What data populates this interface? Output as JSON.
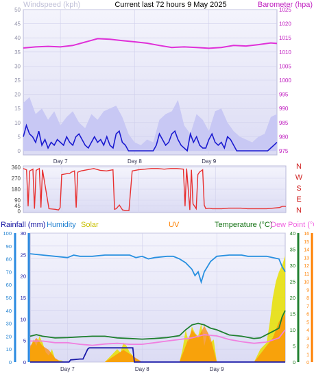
{
  "chart_data": [
    {
      "type": "line",
      "title": "Current last 72 hours 9 May 2025",
      "ylabel_left": "Windspeed (kph)",
      "ylabel_right": "Barometer (hpa)",
      "ylim_left": [
        0,
        50
      ],
      "ylim_right": [
        975,
        1025
      ],
      "yticks_left": [
        "0",
        "5",
        "10",
        "15",
        "20",
        "25",
        "30",
        "35",
        "40",
        "45",
        "50"
      ],
      "yticks_right": [
        "975",
        "980",
        "985",
        "990",
        "995",
        "1000",
        "1005",
        "1010",
        "1015",
        "1020",
        "1025"
      ],
      "x_labels": [
        "Day 7",
        "Day 8",
        "Day 9"
      ],
      "x_label_hours": [
        12,
        36,
        60
      ],
      "x_range_hours": [
        0,
        82
      ],
      "colors": {
        "wind_gust": "#c8c8f4",
        "wind_avg": "#1a1ad0",
        "barometer": "#e030d8",
        "label_left": "#c0c0d8",
        "label_right": "#c020c0"
      },
      "series": [
        {
          "name": "Barometer (hpa)",
          "hours": [
            0,
            4,
            8,
            12,
            16,
            20,
            24,
            28,
            32,
            36,
            40,
            44,
            48,
            52,
            56,
            60,
            64,
            68,
            72,
            76,
            80,
            82
          ],
          "values": [
            1011.4,
            1011.8,
            1012,
            1011.8,
            1012.3,
            1013.5,
            1014.7,
            1014.5,
            1014,
            1013.6,
            1013.1,
            1012.3,
            1011.6,
            1011.8,
            1011.6,
            1011.3,
            1011.6,
            1012.3,
            1012.1,
            1012.6,
            1013.2,
            1013.0
          ]
        },
        {
          "name": "Windspeed (kph)",
          "hours": [
            0,
            1,
            2,
            3,
            4,
            5,
            6,
            7,
            8,
            9,
            10,
            11,
            12,
            13,
            14,
            15,
            16,
            17,
            18,
            19,
            20,
            21,
            22,
            23,
            24,
            25,
            26,
            27,
            28,
            29,
            30,
            31,
            32,
            33,
            34,
            35,
            36,
            37,
            38,
            39,
            40,
            41,
            42,
            43,
            44,
            45,
            46,
            47,
            48,
            49,
            50,
            51,
            52,
            53,
            54,
            55,
            56,
            57,
            58,
            59,
            60,
            61,
            62,
            63,
            64,
            65,
            66,
            67,
            68,
            69,
            70,
            71,
            72,
            73,
            74,
            75,
            76,
            77,
            78,
            79,
            80,
            81,
            82
          ],
          "values": [
            5,
            9,
            6,
            5,
            3,
            7,
            2,
            4,
            1,
            3,
            2,
            4,
            3,
            2,
            5,
            3,
            2,
            5,
            6,
            4,
            2,
            1,
            3,
            5,
            3,
            4,
            2,
            5,
            2,
            1,
            6,
            7,
            3,
            2,
            0,
            0,
            0,
            0,
            0,
            0,
            0,
            0,
            0,
            2,
            6,
            4,
            2,
            3,
            6,
            7,
            4,
            2,
            1,
            0,
            6,
            3,
            5,
            2,
            1,
            1,
            4,
            6,
            3,
            2,
            3,
            1,
            5,
            4,
            2,
            0,
            0,
            0,
            0,
            0,
            0,
            0,
            0,
            0,
            0,
            0,
            1,
            2,
            3
          ]
        },
        {
          "name": "Wind gust",
          "hours": [
            0,
            2,
            4,
            6,
            8,
            10,
            12,
            14,
            16,
            18,
            20,
            22,
            24,
            26,
            28,
            30,
            32,
            34,
            36,
            38,
            40,
            42,
            44,
            46,
            48,
            50,
            52,
            54,
            56,
            58,
            60,
            62,
            64,
            66,
            68,
            70,
            72,
            74,
            76,
            78,
            80,
            82
          ],
          "values": [
            17,
            19,
            13,
            15,
            11,
            14,
            9,
            12,
            14,
            10,
            8,
            13,
            11,
            14,
            15,
            16,
            12,
            6,
            3,
            2,
            4,
            3,
            11,
            13,
            14,
            18,
            9,
            6,
            13,
            11,
            7,
            14,
            15,
            10,
            7,
            5,
            4,
            3,
            5,
            6,
            12,
            13
          ]
        }
      ]
    },
    {
      "type": "line",
      "ylabel_left": "",
      "ylim_left": [
        0,
        360
      ],
      "yticks_left": [
        "0",
        "45",
        "90",
        "180",
        "270",
        "360"
      ],
      "compass_labels": [
        "N",
        "W",
        "S",
        "E",
        "N"
      ],
      "x_labels": [
        "Day 7",
        "Day 8",
        "Day 9"
      ],
      "colors": {
        "direction": "#e83030",
        "compass": "#d02020"
      },
      "series": [
        {
          "name": "Wind direction",
          "hours": [
            0,
            1,
            1.5,
            2,
            3,
            3.5,
            4,
            5,
            5.5,
            6,
            8,
            10,
            11,
            11.5,
            12,
            14,
            14.5,
            15,
            16,
            16.5,
            17,
            18,
            20,
            22,
            24,
            26,
            28,
            28.5,
            29,
            30,
            31,
            32,
            32.5,
            33,
            34,
            36,
            38,
            40,
            42,
            44,
            46,
            48,
            50,
            50.5,
            51,
            52,
            52.5,
            53,
            54,
            54.5,
            55,
            56,
            56.5,
            57,
            58,
            59,
            60,
            62,
            64,
            66,
            68,
            70,
            72,
            74,
            76,
            78,
            80,
            81,
            82
          ],
          "values": [
            350,
            340,
            40,
            330,
            345,
            20,
            335,
            350,
            30,
            340,
            20,
            15,
            10,
            30,
            300,
            310,
            310,
            320,
            330,
            30,
            320,
            330,
            340,
            350,
            335,
            330,
            340,
            15,
            20,
            50,
            10,
            5,
            5,
            5,
            330,
            340,
            345,
            350,
            350,
            345,
            350,
            350,
            345,
            40,
            350,
            10,
            340,
            60,
            20,
            300,
            320,
            340,
            50,
            20,
            25,
            20,
            20,
            20,
            25,
            25,
            25,
            20,
            20,
            20,
            20,
            25,
            30,
            40,
            40
          ]
        }
      ]
    },
    {
      "type": "line",
      "header_labels": [
        "Rainfall (mm)",
        "Humidity",
        "Solar",
        "UV",
        "Temperature (°C)",
        "Dew Point (°C)"
      ],
      "ylim_humidity": [
        0,
        100
      ],
      "yticks_humidity": [
        "0",
        "10",
        "20",
        "30",
        "40",
        "50",
        "60",
        "70",
        "80",
        "90",
        "100"
      ],
      "ylim_rain": [
        0,
        30
      ],
      "yticks_rain": [
        "0",
        "5",
        "10",
        "15",
        "20",
        "25",
        "30"
      ],
      "ylim_temp": [
        0,
        40
      ],
      "yticks_temp": [
        "0",
        "5",
        "10",
        "15",
        "20",
        "25",
        "30",
        "35",
        "40"
      ],
      "ylim_uv": [
        0,
        16
      ],
      "yticks_uv": [
        "0",
        "1",
        "2",
        "3",
        "4",
        "5",
        "6",
        "7",
        "8",
        "9",
        "10",
        "11",
        "12",
        "13",
        "14",
        "15",
        "16"
      ],
      "x_labels": [
        "Day 7",
        "Day 8",
        "Day 9"
      ],
      "colors": {
        "rain": "#1a1aa8",
        "humidity": "#2890e0",
        "solar": "#e8e000",
        "uv": "#ff8800",
        "temperature": "#208030",
        "dewpoint": "#f080e0",
        "label_rain": "#1010a0",
        "label_humidity": "#2080d0",
        "label_solar": "#c8c000",
        "label_uv": "#ff8000",
        "label_temp": "#107010",
        "label_dew": "#f060e0"
      },
      "series": [
        {
          "name": "Humidity",
          "hours": [
            0,
            4,
            8,
            12,
            14,
            16,
            20,
            24,
            28,
            32,
            34,
            36,
            38,
            40,
            44,
            46,
            48,
            50,
            52,
            53,
            54,
            55,
            56,
            57,
            58,
            60,
            64,
            68,
            70,
            72,
            76,
            80,
            81,
            82
          ],
          "values": [
            84,
            83,
            82,
            81,
            83,
            82,
            82,
            83,
            83,
            83,
            81,
            82,
            80,
            81,
            82,
            82,
            80,
            77,
            72,
            67,
            70,
            62,
            70,
            74,
            78,
            82,
            83,
            83,
            82,
            82,
            82,
            80,
            74,
            70
          ]
        },
        {
          "name": "Temperature (°C)",
          "hours": [
            0,
            2,
            4,
            8,
            12,
            16,
            20,
            24,
            28,
            32,
            36,
            40,
            44,
            48,
            50,
            52,
            54,
            56,
            58,
            60,
            64,
            68,
            72,
            74,
            76,
            78,
            80,
            81,
            82
          ],
          "values": [
            8,
            8.5,
            8,
            7.5,
            7.6,
            7.8,
            8,
            8,
            7.5,
            7.3,
            7.1,
            7.3,
            7.6,
            8.2,
            10,
            11.5,
            12,
            11.5,
            10.5,
            10,
            8.4,
            8,
            7.3,
            7.5,
            8.5,
            9.5,
            10.5,
            14,
            16
          ]
        },
        {
          "name": "Dew Point (°C)",
          "hours": [
            0,
            4,
            8,
            12,
            16,
            20,
            24,
            28,
            32,
            36,
            40,
            44,
            48,
            52,
            56,
            60,
            64,
            68,
            72,
            76,
            80,
            82
          ],
          "values": [
            6.5,
            6.5,
            6,
            6,
            5.5,
            5.2,
            5.6,
            5.8,
            5.5,
            5.5,
            6,
            6.5,
            7,
            7.5,
            8.5,
            8.1,
            7,
            6.3,
            5.8,
            6.2,
            7.5,
            10
          ]
        },
        {
          "name": "Rainfall (mm)",
          "hours": [
            0,
            12.5,
            13,
            16,
            17,
            18.5,
            19,
            33,
            33.5,
            34,
            82
          ],
          "values": [
            0,
            0,
            0.5,
            0.7,
            0.7,
            3,
            3.3,
            3.3,
            0,
            0,
            0
          ]
        },
        {
          "name": "Solar",
          "hours": [
            0,
            1,
            2,
            3,
            4,
            5,
            6,
            7,
            8,
            9,
            10,
            11,
            12,
            24,
            25,
            26,
            27,
            28,
            29,
            30,
            31,
            32,
            33,
            34,
            36,
            48,
            49,
            50,
            51,
            52,
            53,
            54,
            55,
            56,
            57,
            58,
            59,
            60,
            72,
            74,
            76,
            77,
            78,
            79,
            80,
            81,
            82
          ],
          "values": [
            4,
            7,
            5,
            8,
            6,
            3,
            2,
            4,
            1,
            0.5,
            0.5,
            0,
            0,
            0,
            1,
            2,
            3,
            4,
            3,
            6,
            5,
            3,
            2,
            1,
            0,
            0,
            4,
            10,
            6,
            11,
            9,
            8,
            12,
            5,
            9,
            6,
            7,
            0,
            0,
            4,
            6,
            12,
            20,
            25,
            28,
            30,
            33
          ]
        },
        {
          "name": "UV",
          "hours": [
            0,
            2,
            4,
            6,
            8,
            10,
            12,
            24,
            26,
            28,
            30,
            32,
            34,
            36,
            48,
            50,
            52,
            54,
            56,
            58,
            60,
            72,
            74,
            76,
            78,
            80,
            82
          ],
          "values": [
            2,
            3,
            2,
            1.5,
            0.5,
            0,
            0,
            0,
            0.5,
            1,
            1.5,
            1,
            0.5,
            0,
            0,
            2,
            4,
            3,
            4.5,
            3,
            0,
            0,
            1,
            2,
            3,
            5,
            6
          ]
        }
      ]
    }
  ]
}
